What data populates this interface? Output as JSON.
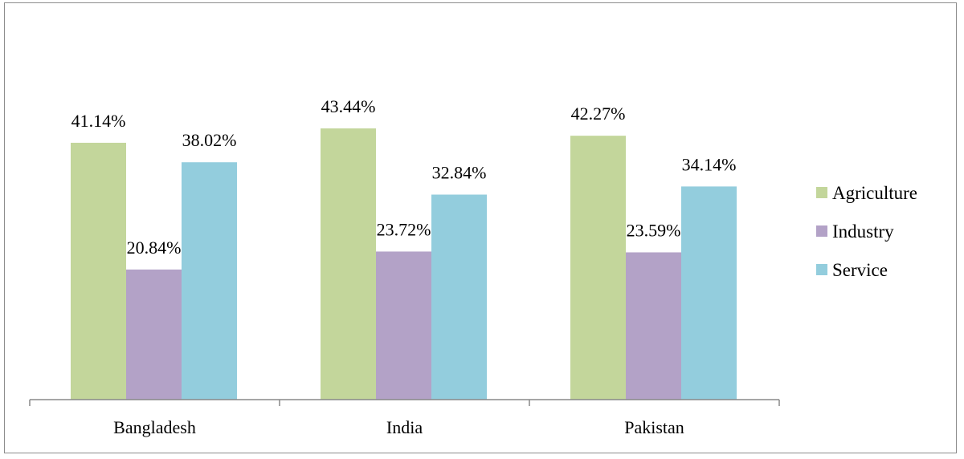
{
  "chart_data": {
    "type": "bar",
    "categories": [
      "Bangladesh",
      "India",
      "Pakistan"
    ],
    "series": [
      {
        "name": "Agriculture",
        "values": [
          41.14,
          43.44,
          42.27
        ],
        "labels": [
          "41.14%",
          "43.44%",
          "42.27%"
        ],
        "color": "#c3d69b"
      },
      {
        "name": "Industry",
        "values": [
          20.84,
          23.72,
          23.59
        ],
        "labels": [
          "20.84%",
          "23.72%",
          "23.59%"
        ],
        "color": "#b3a2c7"
      },
      {
        "name": "Service",
        "values": [
          38.02,
          32.84,
          34.14
        ],
        "labels": [
          "38.02%",
          "32.84%",
          "34.14%"
        ],
        "color": "#93cddd"
      }
    ],
    "ylim": [
      0,
      54
    ],
    "legend_position": "right",
    "grid": false,
    "title": "",
    "xlabel": "",
    "ylabel": ""
  }
}
